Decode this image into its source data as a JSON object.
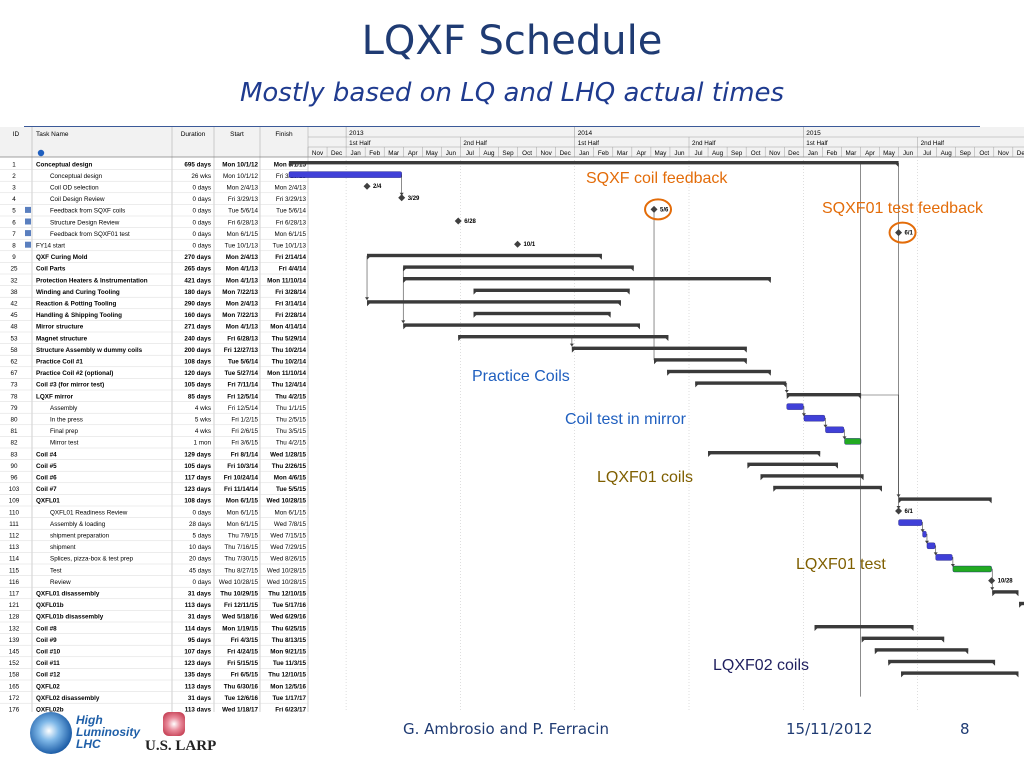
{
  "title": "LQXF Schedule",
  "subtitle": "Mostly based on LQ and LHQ actual times",
  "table": {
    "columns": [
      "ID",
      "Task Name",
      "Duration",
      "Start",
      "Finish"
    ],
    "rows": [
      {
        "id": "1",
        "name": "Conceptual design",
        "dur": "695 days",
        "start": "Mon 10/1/12",
        "finish": "Mon 6/1/15",
        "bold": true,
        "indent": 0
      },
      {
        "id": "2",
        "name": "Conceptual design",
        "dur": "26 wks",
        "start": "Mon 10/1/12",
        "finish": "Fri 3/29/13",
        "bold": false,
        "indent": 1
      },
      {
        "id": "3",
        "name": "Coil OD selection",
        "dur": "0 days",
        "start": "Mon 2/4/13",
        "finish": "Mon 2/4/13",
        "bold": false,
        "indent": 1
      },
      {
        "id": "4",
        "name": "Coil Design Review",
        "dur": "0 days",
        "start": "Fri 3/29/13",
        "finish": "Fri 3/29/13",
        "bold": false,
        "indent": 1
      },
      {
        "id": "5",
        "name": "Feedback from SQXF coils",
        "dur": "0 days",
        "start": "Tue 5/6/14",
        "finish": "Tue 5/6/14",
        "bold": false,
        "indent": 1,
        "icon": true
      },
      {
        "id": "6",
        "name": "Structure Design Review",
        "dur": "0 days",
        "start": "Fri 6/28/13",
        "finish": "Fri 6/28/13",
        "bold": false,
        "indent": 1,
        "icon": true
      },
      {
        "id": "7",
        "name": "Feedback from SQXF01 test",
        "dur": "0 days",
        "start": "Mon 6/1/15",
        "finish": "Mon 6/1/15",
        "bold": false,
        "indent": 1,
        "icon": true
      },
      {
        "id": "8",
        "name": "FY14 start",
        "dur": "0 days",
        "start": "Tue 10/1/13",
        "finish": "Tue 10/1/13",
        "bold": false,
        "indent": 0,
        "icon": true
      },
      {
        "id": "9",
        "name": "QXF Curing Mold",
        "dur": "270 days",
        "start": "Mon 2/4/13",
        "finish": "Fri 2/14/14",
        "bold": true,
        "indent": 0
      },
      {
        "id": "25",
        "name": "Coil Parts",
        "dur": "265 days",
        "start": "Mon 4/1/13",
        "finish": "Fri 4/4/14",
        "bold": true,
        "indent": 0
      },
      {
        "id": "32",
        "name": "Protection Heaters & Instrumentation",
        "dur": "421 days",
        "start": "Mon 4/1/13",
        "finish": "Mon 11/10/14",
        "bold": true,
        "indent": 0
      },
      {
        "id": "38",
        "name": "Winding and Curing Tooling",
        "dur": "180 days",
        "start": "Mon 7/22/13",
        "finish": "Fri 3/28/14",
        "bold": true,
        "indent": 0
      },
      {
        "id": "42",
        "name": "Reaction & Potting Tooling",
        "dur": "290 days",
        "start": "Mon 2/4/13",
        "finish": "Fri 3/14/14",
        "bold": true,
        "indent": 0
      },
      {
        "id": "45",
        "name": "Handling & Shipping Tooling",
        "dur": "160 days",
        "start": "Mon 7/22/13",
        "finish": "Fri 2/28/14",
        "bold": true,
        "indent": 0
      },
      {
        "id": "48",
        "name": "Mirror structure",
        "dur": "271 days",
        "start": "Mon 4/1/13",
        "finish": "Mon 4/14/14",
        "bold": true,
        "indent": 0
      },
      {
        "id": "53",
        "name": "Magnet structure",
        "dur": "240 days",
        "start": "Fri 6/28/13",
        "finish": "Thu 5/29/14",
        "bold": true,
        "indent": 0
      },
      {
        "id": "58",
        "name": "Structure Assembly w dummy coils",
        "dur": "200 days",
        "start": "Fri 12/27/13",
        "finish": "Thu 10/2/14",
        "bold": true,
        "indent": 0
      },
      {
        "id": "62",
        "name": "Practice Coil #1",
        "dur": "108 days",
        "start": "Tue 5/6/14",
        "finish": "Thu 10/2/14",
        "bold": true,
        "indent": 0
      },
      {
        "id": "67",
        "name": "Practice Coil #2 (optional)",
        "dur": "120 days",
        "start": "Tue 5/27/14",
        "finish": "Mon 11/10/14",
        "bold": true,
        "indent": 0
      },
      {
        "id": "73",
        "name": "Coil #3 (for mirror test)",
        "dur": "105 days",
        "start": "Fri 7/11/14",
        "finish": "Thu 12/4/14",
        "bold": true,
        "indent": 0
      },
      {
        "id": "78",
        "name": "LQXF  mirror",
        "dur": "85 days",
        "start": "Fri 12/5/14",
        "finish": "Thu 4/2/15",
        "bold": true,
        "indent": 0
      },
      {
        "id": "79",
        "name": "Assembly",
        "dur": "4 wks",
        "start": "Fri 12/5/14",
        "finish": "Thu 1/1/15",
        "bold": false,
        "indent": 1
      },
      {
        "id": "80",
        "name": "In the press",
        "dur": "5 wks",
        "start": "Fri 1/2/15",
        "finish": "Thu 2/5/15",
        "bold": false,
        "indent": 1
      },
      {
        "id": "81",
        "name": "Final prep",
        "dur": "4 wks",
        "start": "Fri 2/6/15",
        "finish": "Thu 3/5/15",
        "bold": false,
        "indent": 1
      },
      {
        "id": "82",
        "name": "Mirror test",
        "dur": "1 mon",
        "start": "Fri 3/6/15",
        "finish": "Thu 4/2/15",
        "bold": false,
        "indent": 1
      },
      {
        "id": "83",
        "name": "Coil #4",
        "dur": "129 days",
        "start": "Fri 8/1/14",
        "finish": "Wed 1/28/15",
        "bold": true,
        "indent": 0
      },
      {
        "id": "90",
        "name": "Coil #5",
        "dur": "105 days",
        "start": "Fri 10/3/14",
        "finish": "Thu 2/26/15",
        "bold": true,
        "indent": 0
      },
      {
        "id": "96",
        "name": "Coil #6",
        "dur": "117 days",
        "start": "Fri 10/24/14",
        "finish": "Mon 4/6/15",
        "bold": true,
        "indent": 0
      },
      {
        "id": "103",
        "name": "Coil #7",
        "dur": "123 days",
        "start": "Fri 11/14/14",
        "finish": "Tue 5/5/15",
        "bold": true,
        "indent": 0
      },
      {
        "id": "109",
        "name": "QXFL01",
        "dur": "108 days",
        "start": "Mon 6/1/15",
        "finish": "Wed 10/28/15",
        "bold": true,
        "indent": 0
      },
      {
        "id": "110",
        "name": "QXFL01 Readiness Review",
        "dur": "0 days",
        "start": "Mon 6/1/15",
        "finish": "Mon 6/1/15",
        "bold": false,
        "indent": 1
      },
      {
        "id": "111",
        "name": "Assembly & loading",
        "dur": "28 days",
        "start": "Mon 6/1/15",
        "finish": "Wed 7/8/15",
        "bold": false,
        "indent": 1
      },
      {
        "id": "112",
        "name": "shipment preparation",
        "dur": "5 days",
        "start": "Thu 7/9/15",
        "finish": "Wed 7/15/15",
        "bold": false,
        "indent": 1
      },
      {
        "id": "113",
        "name": "shipment",
        "dur": "10 days",
        "start": "Thu 7/16/15",
        "finish": "Wed 7/29/15",
        "bold": false,
        "indent": 1
      },
      {
        "id": "114",
        "name": "Splices, pizza-box & test prep",
        "dur": "20 days",
        "start": "Thu 7/30/15",
        "finish": "Wed 8/26/15",
        "bold": false,
        "indent": 1
      },
      {
        "id": "115",
        "name": "Test",
        "dur": "45 days",
        "start": "Thu 8/27/15",
        "finish": "Wed 10/28/15",
        "bold": false,
        "indent": 1
      },
      {
        "id": "116",
        "name": "Review",
        "dur": "0 days",
        "start": "Wed 10/28/15",
        "finish": "Wed 10/28/15",
        "bold": false,
        "indent": 1
      },
      {
        "id": "117",
        "name": "QXFL01 disassembly",
        "dur": "31 days",
        "start": "Thu 10/29/15",
        "finish": "Thu 12/10/15",
        "bold": true,
        "indent": 0
      },
      {
        "id": "121",
        "name": "QXFL01b",
        "dur": "113 days",
        "start": "Fri 12/11/15",
        "finish": "Tue 5/17/16",
        "bold": true,
        "indent": 0
      },
      {
        "id": "128",
        "name": "QXFL01b disassembly",
        "dur": "31 days",
        "start": "Wed 5/18/16",
        "finish": "Wed 6/29/16",
        "bold": true,
        "indent": 0
      },
      {
        "id": "132",
        "name": "Coil #8",
        "dur": "114 days",
        "start": "Mon 1/19/15",
        "finish": "Thu 6/25/15",
        "bold": true,
        "indent": 0
      },
      {
        "id": "139",
        "name": "Coil #9",
        "dur": "95 days",
        "start": "Fri 4/3/15",
        "finish": "Thu 8/13/15",
        "bold": true,
        "indent": 0
      },
      {
        "id": "145",
        "name": "Coil #10",
        "dur": "107 days",
        "start": "Fri 4/24/15",
        "finish": "Mon 9/21/15",
        "bold": true,
        "indent": 0
      },
      {
        "id": "152",
        "name": "Coil #11",
        "dur": "123 days",
        "start": "Fri 5/15/15",
        "finish": "Tue 11/3/15",
        "bold": true,
        "indent": 0
      },
      {
        "id": "158",
        "name": "Coil #12",
        "dur": "135 days",
        "start": "Fri 6/5/15",
        "finish": "Thu 12/10/15",
        "bold": true,
        "indent": 0
      },
      {
        "id": "165",
        "name": "QXFL02",
        "dur": "113 days",
        "start": "Thu 6/30/16",
        "finish": "Mon 12/5/16",
        "bold": true,
        "indent": 0
      },
      {
        "id": "172",
        "name": "QXFL02 disassembly",
        "dur": "31 days",
        "start": "Tue 12/6/16",
        "finish": "Tue 1/17/17",
        "bold": true,
        "indent": 0
      },
      {
        "id": "176",
        "name": "QXFL02b",
        "dur": "113 days",
        "start": "Wed 1/18/17",
        "finish": "Fri 6/23/17",
        "bold": true,
        "indent": 0
      }
    ]
  },
  "timeline": {
    "years": [
      "2013",
      "2014",
      "2015"
    ],
    "halves": [
      "1st Half",
      "2nd Half",
      "1st Half",
      "2nd Half",
      "1st Half",
      "2nd Half"
    ],
    "months": [
      "Nov",
      "Dec",
      "Jan",
      "Feb",
      "Mar",
      "Apr",
      "May",
      "Jun",
      "Jul",
      "Aug",
      "Sep",
      "Oct",
      "Nov",
      "Dec",
      "Jan",
      "Feb",
      "Mar",
      "Apr",
      "May",
      "Jun",
      "Jul",
      "Aug",
      "Sep",
      "Oct",
      "Nov",
      "Dec",
      "Jan",
      "Feb",
      "Mar",
      "Apr",
      "May",
      "Jun",
      "Jul",
      "Aug",
      "Sep",
      "Oct",
      "Nov",
      "Dec"
    ],
    "milestone_labels": [
      "2/4",
      "3/29",
      "5/6",
      "6/28",
      "6/1",
      "10/1",
      "6/1",
      "10/28"
    ]
  },
  "annotations": [
    {
      "text": "SQXF coil feedback",
      "color": "#e36c09"
    },
    {
      "text": "SQXF01 test feedback",
      "color": "#e36c09"
    },
    {
      "text": "Practice Coils",
      "color": "#1f5fbf"
    },
    {
      "text": "Coil test in mirror",
      "color": "#1f5fbf"
    },
    {
      "text": "LQXF01 coils",
      "color": "#7f5f00"
    },
    {
      "text": "LQXF01 test",
      "color": "#7f5f00"
    },
    {
      "text": "LQXF02 coils",
      "color": "#1f1f5f"
    }
  ],
  "footer": {
    "authors": "G. Ambrosio and P. Ferracin",
    "date": "15/11/2012",
    "page": "8",
    "logo_text": "High\nLuminosity\nLHC",
    "larp_text": "U.S. LARP"
  },
  "colors": {
    "title": "#1f3b73",
    "summary_bar": "#3a3a3a",
    "task_bar": "#4040d8",
    "test_bar": "#22aa22",
    "circle": "#e36c09"
  }
}
